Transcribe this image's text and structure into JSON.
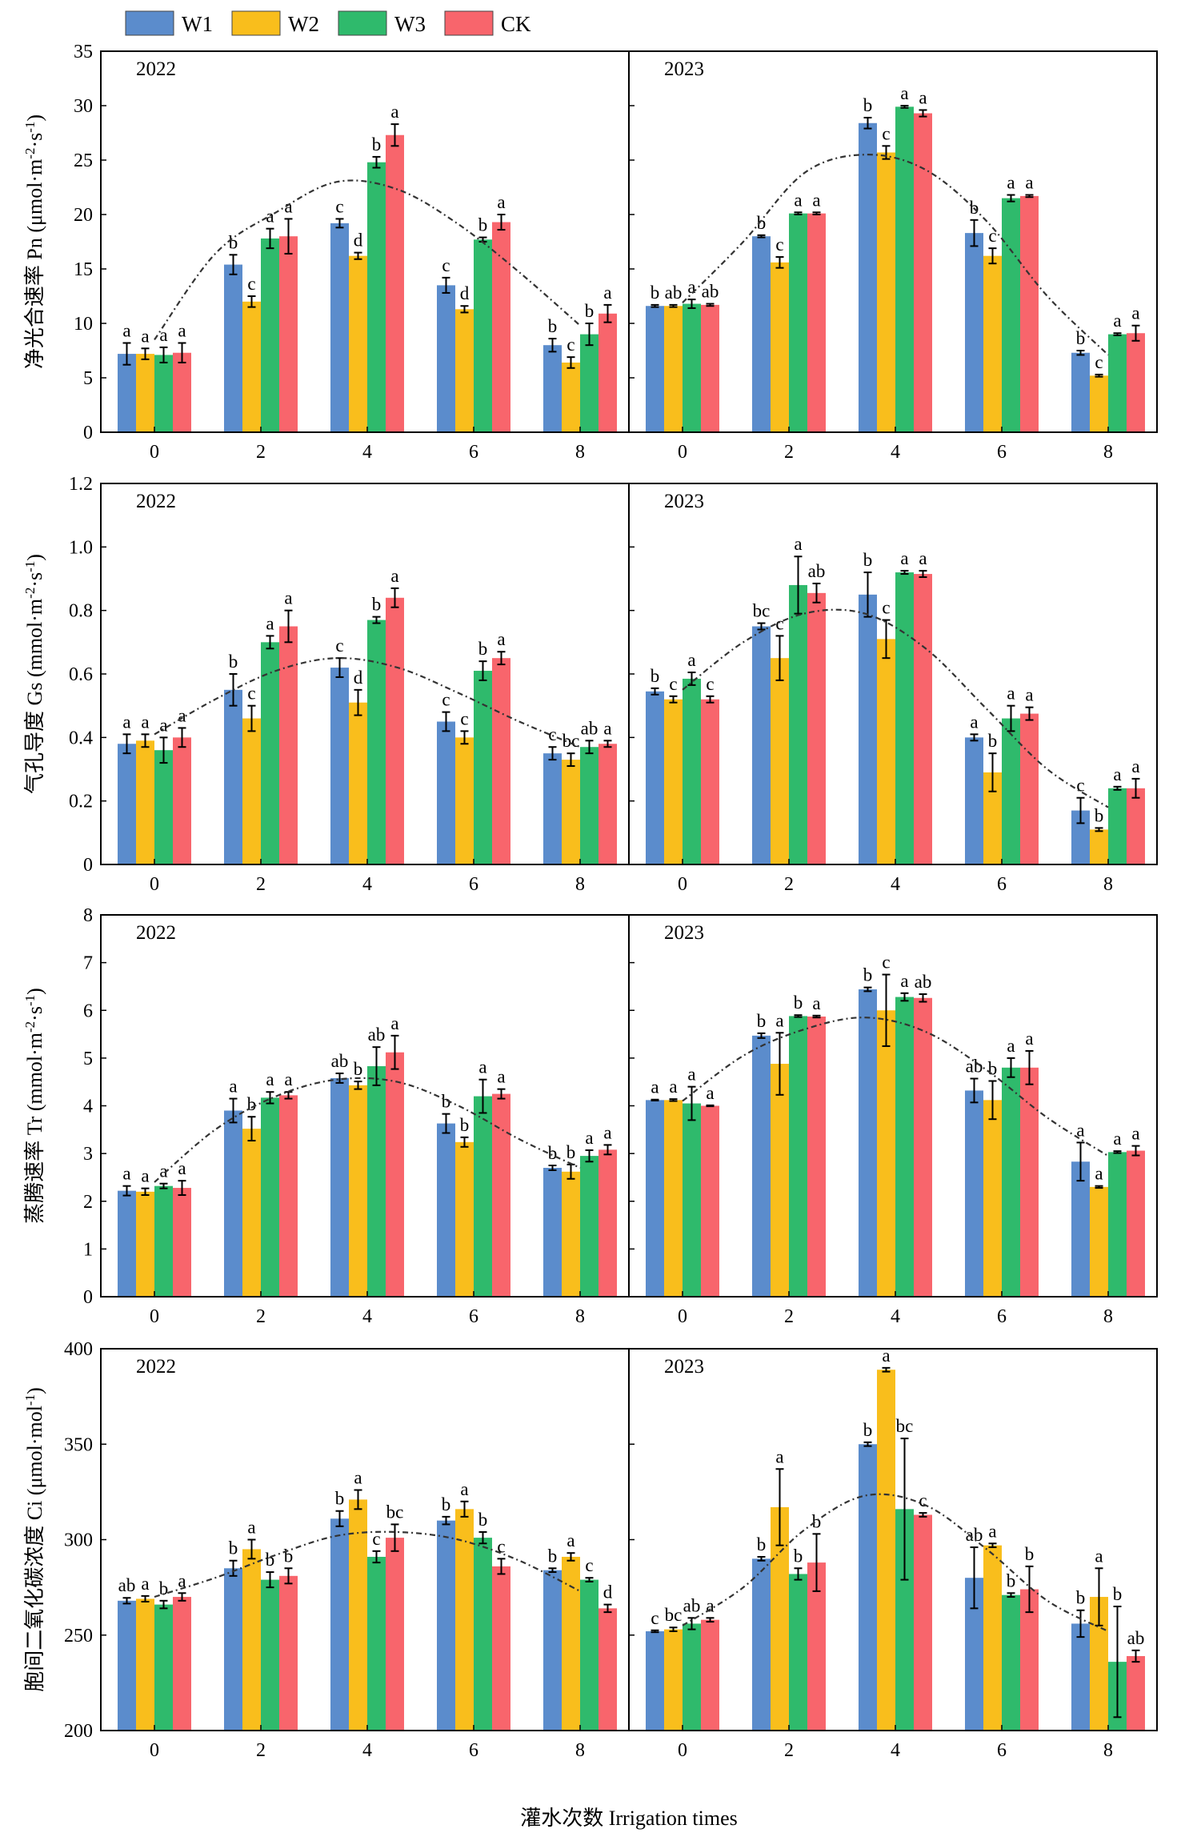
{
  "chart_data": {
    "type": "bar",
    "legend": {
      "placement": "top-left",
      "entries": [
        {
          "name": "W1",
          "color": "#5b8ccc"
        },
        {
          "name": "W2",
          "color": "#f9be1c"
        },
        {
          "name": "W3",
          "color": "#2fba6c"
        },
        {
          "name": "CK",
          "color": "#f8656c"
        }
      ]
    },
    "xlabel": "灌水次数 Irrigation times",
    "categories": [
      "0",
      "2",
      "4",
      "6",
      "8"
    ],
    "rows": [
      {
        "ylabel_pre": "净光合速率 Pn (μmol·m",
        "ylabel_sup1": "-2",
        "ylabel_mid": "·s",
        "ylabel_sup2": "-1",
        "ylabel_post": ")",
        "ylim": [
          0,
          35
        ],
        "yticks": [
          "0",
          "5",
          "10",
          "15",
          "20",
          "25",
          "30",
          "35"
        ],
        "panels": [
          {
            "year": "2022",
            "values": [
              [
                7.2,
                7.2,
                7.1,
                7.3
              ],
              [
                15.4,
                12.0,
                17.8,
                18.0
              ],
              [
                19.2,
                16.2,
                24.8,
                27.3
              ],
              [
                13.5,
                11.3,
                17.7,
                19.3
              ],
              [
                8.0,
                6.4,
                9.0,
                10.9
              ]
            ],
            "errors": [
              [
                1.0,
                0.5,
                0.7,
                0.9
              ],
              [
                0.9,
                0.5,
                0.9,
                1.6
              ],
              [
                0.4,
                0.3,
                0.5,
                1.0
              ],
              [
                0.7,
                0.3,
                0.2,
                0.7
              ],
              [
                0.6,
                0.5,
                1.0,
                0.8
              ]
            ],
            "letters": [
              [
                "a",
                "a",
                "a",
                "a"
              ],
              [
                "b",
                "c",
                "a",
                "a"
              ],
              [
                "c",
                "d",
                "b",
                "a"
              ],
              [
                "c",
                "d",
                "b",
                "a"
              ],
              [
                "b",
                "c",
                "b",
                "a"
              ]
            ],
            "trend": [
              8.5,
              16.4,
              20.2,
              23.0,
              22.3,
              19.1,
              14.7,
              9.8
            ]
          },
          {
            "year": "2023",
            "values": [
              [
                11.6,
                11.6,
                11.8,
                11.7
              ],
              [
                18.0,
                15.6,
                20.1,
                20.1
              ],
              [
                28.4,
                25.7,
                29.9,
                29.3
              ],
              [
                18.3,
                16.2,
                21.5,
                21.7
              ],
              [
                7.3,
                5.2,
                9.0,
                9.1
              ]
            ],
            "errors": [
              [
                0.1,
                0.1,
                0.4,
                0.1
              ],
              [
                0.1,
                0.5,
                0.1,
                0.1
              ],
              [
                0.5,
                0.6,
                0.1,
                0.3
              ],
              [
                1.2,
                0.7,
                0.3,
                0.1
              ],
              [
                0.2,
                0.1,
                0.1,
                0.7
              ]
            ],
            "letters": [
              [
                "b",
                "ab",
                "a",
                "ab"
              ],
              [
                "b",
                "c",
                "a",
                "a"
              ],
              [
                "b",
                "c",
                "a",
                "a"
              ],
              [
                "b",
                "c",
                "a",
                "a"
              ],
              [
                "b",
                "c",
                "a",
                "a"
              ]
            ],
            "trend": [
              11.9,
              17.5,
              23.8,
              25.5,
              24.1,
              19.4,
              12.5,
              7.1
            ]
          }
        ]
      },
      {
        "ylabel_pre": "气孔导度 Gs (mmol·m",
        "ylabel_sup1": "-2",
        "ylabel_mid": "·s",
        "ylabel_sup2": "-1",
        "ylabel_post": ")",
        "ylim": [
          0,
          1.2
        ],
        "yticks": [
          "0",
          "0.2",
          "0.4",
          "0.6",
          "0.8",
          "1.0",
          "1.2"
        ],
        "panels": [
          {
            "year": "2022",
            "values": [
              [
                0.38,
                0.39,
                0.36,
                0.4
              ],
              [
                0.55,
                0.46,
                0.7,
                0.75
              ],
              [
                0.62,
                0.51,
                0.77,
                0.84
              ],
              [
                0.45,
                0.4,
                0.61,
                0.65
              ],
              [
                0.35,
                0.33,
                0.37,
                0.38
              ]
            ],
            "errors": [
              [
                0.03,
                0.02,
                0.04,
                0.03
              ],
              [
                0.05,
                0.04,
                0.02,
                0.05
              ],
              [
                0.03,
                0.04,
                0.01,
                0.03
              ],
              [
                0.03,
                0.02,
                0.03,
                0.02
              ],
              [
                0.02,
                0.02,
                0.02,
                0.01
              ]
            ],
            "letters": [
              [
                "a",
                "a",
                "a",
                "a"
              ],
              [
                "b",
                "c",
                "a",
                "a"
              ],
              [
                "c",
                "d",
                "b",
                "a"
              ],
              [
                "c",
                "c",
                "b",
                "a"
              ],
              [
                "c",
                "bc",
                "ab",
                "a"
              ]
            ],
            "trend": [
              0.41,
              0.52,
              0.61,
              0.65,
              0.62,
              0.54,
              0.45,
              0.37
            ]
          },
          {
            "year": "2023",
            "values": [
              [
                0.545,
                0.52,
                0.585,
                0.52
              ],
              [
                0.75,
                0.65,
                0.88,
                0.855
              ],
              [
                0.85,
                0.71,
                0.92,
                0.915
              ],
              [
                0.4,
                0.29,
                0.46,
                0.475
              ],
              [
                0.17,
                0.11,
                0.24,
                0.24
              ]
            ],
            "errors": [
              [
                0.01,
                0.01,
                0.02,
                0.01
              ],
              [
                0.01,
                0.07,
                0.09,
                0.03
              ],
              [
                0.07,
                0.06,
                0.005,
                0.01
              ],
              [
                0.01,
                0.06,
                0.04,
                0.02
              ],
              [
                0.04,
                0.005,
                0.005,
                0.03
              ]
            ],
            "letters": [
              [
                "b",
                "c",
                "a",
                "c"
              ],
              [
                "bc",
                "c",
                "a",
                "ab"
              ],
              [
                "b",
                "c",
                "a",
                "a"
              ],
              [
                "a",
                "b",
                "a",
                "a"
              ],
              [
                "c",
                "b",
                "a",
                "a"
              ]
            ],
            "trend": [
              0.55,
              0.7,
              0.79,
              0.79,
              0.68,
              0.49,
              0.3,
              0.18
            ]
          }
        ]
      },
      {
        "ylabel_pre": "蒸腾速率 Tr (mmol·m",
        "ylabel_sup1": "-2",
        "ylabel_mid": "·s",
        "ylabel_sup2": "-1",
        "ylabel_post": ")",
        "ylim": [
          0,
          8
        ],
        "yticks": [
          "0",
          "1",
          "2",
          "3",
          "4",
          "5",
          "6",
          "7",
          "8"
        ],
        "panels": [
          {
            "year": "2022",
            "values": [
              [
                2.22,
                2.2,
                2.32,
                2.28
              ],
              [
                3.9,
                3.52,
                4.17,
                4.22
              ],
              [
                4.58,
                4.43,
                4.83,
                5.12
              ],
              [
                3.63,
                3.24,
                4.2,
                4.25
              ],
              [
                2.7,
                2.62,
                2.95,
                3.08
              ]
            ],
            "errors": [
              [
                0.1,
                0.07,
                0.05,
                0.15
              ],
              [
                0.25,
                0.25,
                0.12,
                0.07
              ],
              [
                0.1,
                0.08,
                0.4,
                0.35
              ],
              [
                0.2,
                0.1,
                0.35,
                0.1
              ],
              [
                0.05,
                0.15,
                0.12,
                0.1
              ]
            ],
            "letters": [
              [
                "a",
                "a",
                "a",
                "a"
              ],
              [
                "a",
                "b",
                "a",
                "a"
              ],
              [
                "ab",
                "b",
                "ab",
                "a"
              ],
              [
                "b",
                "b",
                "a",
                "a"
              ],
              [
                "b",
                "b",
                "a",
                "a"
              ]
            ],
            "trend": [
              2.4,
              3.5,
              4.2,
              4.55,
              4.5,
              4.0,
              3.3,
              2.7
            ]
          },
          {
            "year": "2023",
            "values": [
              [
                4.12,
                4.12,
                4.05,
                4.0
              ],
              [
                5.47,
                4.88,
                5.88,
                5.87
              ],
              [
                6.44,
                6.0,
                6.28,
                6.26
              ],
              [
                4.32,
                4.12,
                4.8,
                4.8
              ],
              [
                2.83,
                2.3,
                3.03,
                3.06
              ]
            ],
            "errors": [
              [
                0.01,
                0.02,
                0.35,
                0.01
              ],
              [
                0.05,
                0.65,
                0.02,
                0.02
              ],
              [
                0.04,
                0.75,
                0.08,
                0.08
              ],
              [
                0.25,
                0.4,
                0.2,
                0.35
              ],
              [
                0.4,
                0.02,
                0.02,
                0.1
              ]
            ],
            "letters": [
              [
                "a",
                "a",
                "a",
                "a"
              ],
              [
                "b",
                "a",
                "b",
                "a"
              ],
              [
                "b",
                "c",
                "a",
                "ab"
              ],
              [
                "ab",
                "b",
                "a",
                "a"
              ],
              [
                "a",
                "a",
                "a",
                "a"
              ]
            ],
            "trend": [
              4.1,
              5.05,
              5.6,
              5.85,
              5.55,
              4.75,
              3.75,
              2.95
            ]
          }
        ]
      },
      {
        "ylabel_pre": "胞间二氧化碳浓度 Ci (μmol·mol",
        "ylabel_sup1": "-1",
        "ylabel_mid": "",
        "ylabel_sup2": "",
        "ylabel_post": ")",
        "ylim": [
          200,
          400
        ],
        "yticks": [
          "200",
          "250",
          "300",
          "350",
          "400"
        ],
        "panels": [
          {
            "year": "2022",
            "values": [
              [
                268,
                269,
                266,
                270
              ],
              [
                285,
                295,
                279,
                281
              ],
              [
                311,
                321,
                291,
                301
              ],
              [
                310,
                316,
                301,
                286
              ],
              [
                284,
                291,
                279,
                264
              ]
            ],
            "errors": [
              [
                1.5,
                1.5,
                2,
                2
              ],
              [
                4,
                5,
                4,
                4
              ],
              [
                4,
                5,
                3,
                7
              ],
              [
                2,
                4,
                3,
                4
              ],
              [
                1,
                2,
                1,
                2
              ]
            ],
            "letters": [
              [
                "ab",
                "a",
                "b",
                "a"
              ],
              [
                "b",
                "a",
                "b",
                "b"
              ],
              [
                "b",
                "a",
                "c",
                "bc"
              ],
              [
                "b",
                "a",
                "b",
                "c"
              ],
              [
                "b",
                "a",
                "c",
                "d"
              ]
            ],
            "trend": [
              270,
              280,
              292,
              302,
              304,
              300,
              289,
              273
            ]
          },
          {
            "year": "2023",
            "values": [
              [
                252,
                253,
                256,
                258
              ],
              [
                290,
                317,
                282,
                288
              ],
              [
                350,
                389,
                316,
                313
              ],
              [
                280,
                297,
                271,
                274
              ],
              [
                256,
                270,
                236,
                239
              ]
            ],
            "errors": [
              [
                0.5,
                1,
                3,
                1
              ],
              [
                1,
                20,
                3,
                15
              ],
              [
                1,
                1,
                37,
                1
              ],
              [
                16,
                1,
                1,
                12
              ],
              [
                7,
                15,
                29,
                3
              ]
            ],
            "letters": [
              [
                "c",
                "bc",
                "ab",
                "a"
              ],
              [
                "b",
                "a",
                "b",
                "b"
              ],
              [
                "b",
                "a",
                "bc",
                "c"
              ],
              [
                "ab",
                "a",
                "b",
                "b"
              ],
              [
                "b",
                "a",
                "b",
                "ab"
              ]
            ],
            "trend": [
              255,
              275,
              305,
              323,
              318,
              295,
              268,
              252
            ]
          }
        ]
      }
    ]
  }
}
